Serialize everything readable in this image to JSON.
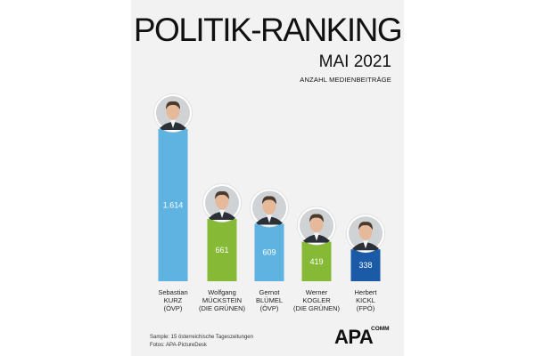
{
  "chart_data": {
    "type": "bar",
    "title": "POLITIK-RANKING",
    "subtitle": "MAI 2021",
    "ylabel": "ANZAHL MEDIENBEITRÄGE",
    "categories": [
      {
        "first": "Sebastian",
        "last": "KURZ",
        "party": "(ÖVP)"
      },
      {
        "first": "Wolfgang",
        "last": "MÜCKSTEIN",
        "party": "(DIE GRÜNEN)"
      },
      {
        "first": "Gernot",
        "last": "BLÜMEL",
        "party": "(ÖVP)"
      },
      {
        "first": "Werner",
        "last": "KOGLER",
        "party": "(DIE GRÜNEN)"
      },
      {
        "first": "Herbert",
        "last": "KICKL",
        "party": "(FPÖ)"
      }
    ],
    "values": [
      1614,
      661,
      609,
      419,
      338
    ],
    "value_labels": [
      "1.614",
      "661",
      "609",
      "419",
      "338"
    ],
    "colors": [
      "#5fb3e0",
      "#86b935",
      "#5fb3e0",
      "#86b935",
      "#1a5aa6"
    ],
    "ylim": [
      0,
      1614
    ],
    "grid": false,
    "legend": "none"
  },
  "footer": {
    "sample": "Sample: 15 österreichische Tageszeitungen",
    "photos": "Fotos: APA-PictureDesk"
  },
  "logo": {
    "main": "APA",
    "sub": "COMM"
  }
}
